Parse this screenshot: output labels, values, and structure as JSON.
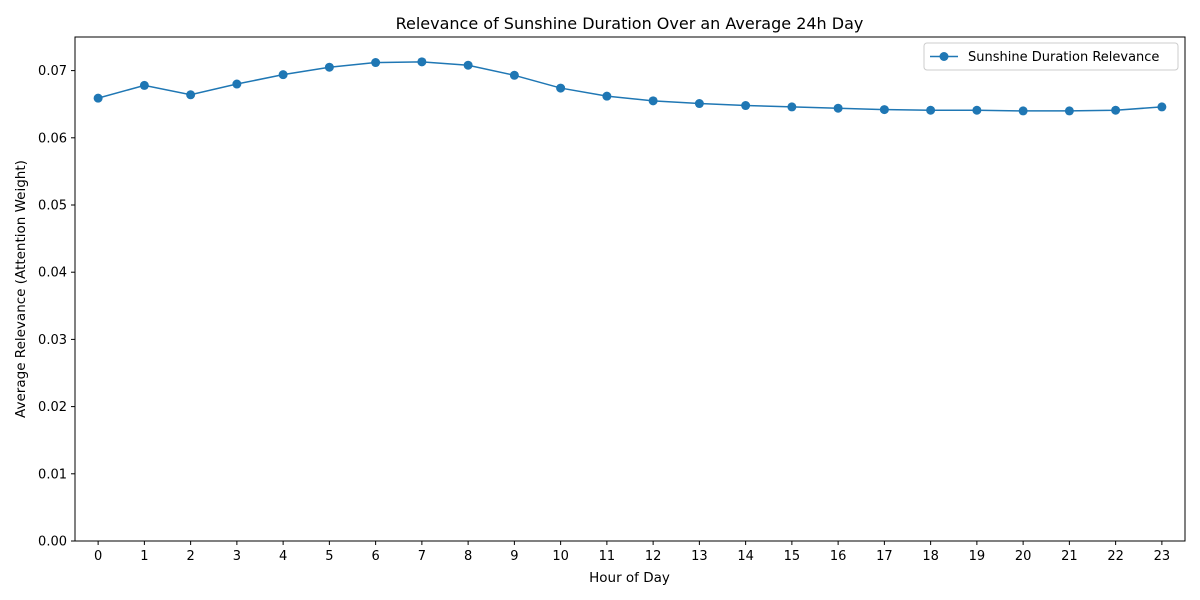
{
  "chart_data": {
    "type": "line",
    "title": "Relevance of Sunshine Duration Over an Average 24h Day",
    "xlabel": "Hour of Day",
    "ylabel": "Average Relevance (Attention Weight)",
    "x": [
      0,
      1,
      2,
      3,
      4,
      5,
      6,
      7,
      8,
      9,
      10,
      11,
      12,
      13,
      14,
      15,
      16,
      17,
      18,
      19,
      20,
      21,
      22,
      23
    ],
    "xticks": [
      "0",
      "1",
      "2",
      "3",
      "4",
      "5",
      "6",
      "7",
      "8",
      "9",
      "10",
      "11",
      "12",
      "13",
      "14",
      "15",
      "16",
      "17",
      "18",
      "19",
      "20",
      "21",
      "22",
      "23"
    ],
    "ylim": [
      0,
      0.075
    ],
    "yticks": [
      0.0,
      0.01,
      0.02,
      0.03,
      0.04,
      0.05,
      0.06,
      0.07
    ],
    "ytick_labels": [
      "0.00",
      "0.01",
      "0.02",
      "0.03",
      "0.04",
      "0.05",
      "0.06",
      "0.07"
    ],
    "grid": false,
    "legend_position": "upper right",
    "series": [
      {
        "name": "Sunshine Duration Relevance",
        "color": "#1f77b4",
        "marker": "circle",
        "values": [
          0.0659,
          0.0678,
          0.0664,
          0.068,
          0.0694,
          0.0705,
          0.0712,
          0.0713,
          0.0708,
          0.0693,
          0.0674,
          0.0662,
          0.0655,
          0.0651,
          0.0648,
          0.0646,
          0.0644,
          0.0642,
          0.0641,
          0.0641,
          0.064,
          0.064,
          0.0641,
          0.0646
        ]
      }
    ]
  }
}
